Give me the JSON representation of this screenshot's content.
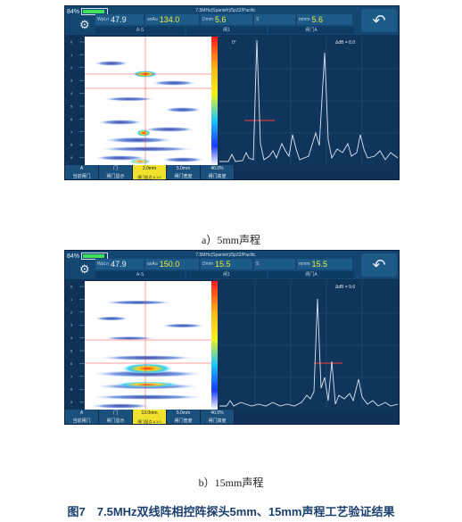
{
  "panels": [
    {
      "battery": "84%",
      "info_top": "7.5MHz(Spanish)/5p32/Pacific",
      "fields": [
        {
          "label": "WpLn",
          "value": "47.9"
        },
        {
          "label": "anAu",
          "value": "134.0"
        },
        {
          "label": "Dmm",
          "value": "5.6"
        },
        {
          "label": "S",
          "value": ""
        },
        {
          "label": "mmm",
          "value": "5.6"
        }
      ],
      "sub_tabs": [
        "A-S",
        "闸1",
        "闸门A"
      ],
      "ascan_left_label": "0°",
      "ascan_right_label": "ΔdB = 8.0",
      "footer_top": [
        "A",
        "门",
        "3.0mm",
        "5.0mm",
        "40.0%"
      ],
      "footer_bottom": [
        "当前闸门",
        "闸门显示",
        "闸门起点 Δ 1.0",
        "闸门宽度",
        "闸门高度"
      ],
      "highlight_index": 2,
      "depth_ticks": [
        "0",
        "1",
        "2",
        "3",
        "4",
        "5",
        "6",
        "7",
        "8",
        "9"
      ]
    },
    {
      "battery": "84%",
      "info_top": "7.5MHz(Spanish)/5p32/Pacific",
      "fields": [
        {
          "label": "WpLn",
          "value": "47.9"
        },
        {
          "label": "anAu",
          "value": "150.0"
        },
        {
          "label": "Dmm",
          "value": "15.5"
        },
        {
          "label": "S",
          "value": ""
        },
        {
          "label": "mmm",
          "value": "15.5"
        }
      ],
      "sub_tabs": [
        "A-S",
        "闸1",
        "闸门A"
      ],
      "ascan_left_label": "",
      "ascan_right_label": "ΔdB = 9.6",
      "footer_top": [
        "A",
        "门",
        "13.0mm",
        "5.0mm",
        "40.0%"
      ],
      "footer_bottom": [
        "当前闸门",
        "闸门显示",
        "闸门起点 Δ 1.0",
        "闸门宽度",
        "闸门高度"
      ],
      "highlight_index": 2,
      "depth_ticks": [
        "0",
        "1",
        "2",
        "3",
        "4",
        "5",
        "6",
        "7",
        "8",
        "9"
      ]
    }
  ],
  "captions": {
    "a": "a）5mm声程",
    "b": "b）15mm声程",
    "figure": "图7　7.5MHz双线阵相控阵探头5mm、15mm声程工艺验证结果"
  },
  "colors": {
    "panel_bg": "#0f3358",
    "gate_red": "#ff3b3b",
    "highlight": "#efe12e",
    "trace": "#d9e7f3"
  }
}
